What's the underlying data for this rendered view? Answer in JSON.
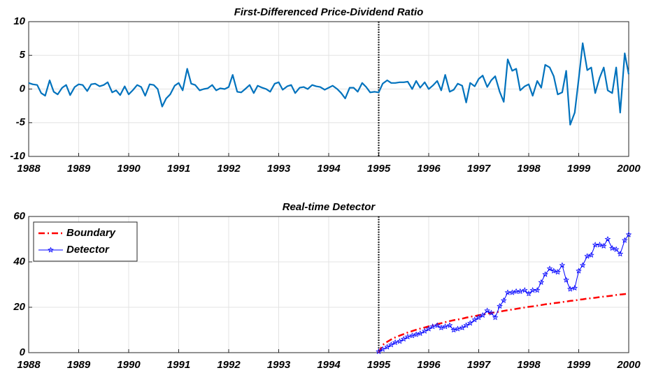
{
  "chart_data": [
    {
      "type": "line",
      "title": "First-Differenced Price-Dividend Ratio",
      "xlim": [
        1988,
        2000
      ],
      "xticks": [
        1988,
        1989,
        1990,
        1991,
        1992,
        1993,
        1994,
        1995,
        1996,
        1997,
        1998,
        1999,
        2000
      ],
      "ylim": [
        -10,
        10
      ],
      "yticks": [
        -10,
        -5,
        0,
        5,
        10
      ],
      "grid": true,
      "vline": 1995,
      "x": [
        1988,
        1988.08,
        1988.17,
        1988.25,
        1988.33,
        1988.42,
        1988.5,
        1988.58,
        1988.67,
        1988.75,
        1988.83,
        1988.92,
        1989,
        1989.08,
        1989.17,
        1989.25,
        1989.33,
        1989.42,
        1989.5,
        1989.58,
        1989.67,
        1989.75,
        1989.83,
        1989.92,
        1990,
        1990.08,
        1990.17,
        1990.25,
        1990.33,
        1990.42,
        1990.5,
        1990.58,
        1990.67,
        1990.75,
        1990.83,
        1990.92,
        1991,
        1991.08,
        1991.17,
        1991.25,
        1991.33,
        1991.42,
        1991.5,
        1991.58,
        1991.67,
        1991.75,
        1991.83,
        1991.92,
        1992,
        1992.08,
        1992.17,
        1992.25,
        1992.33,
        1992.42,
        1992.5,
        1992.58,
        1992.67,
        1992.75,
        1992.83,
        1992.92,
        1993,
        1993.08,
        1993.17,
        1993.25,
        1993.33,
        1993.42,
        1993.5,
        1993.58,
        1993.67,
        1993.75,
        1993.83,
        1993.92,
        1994,
        1994.08,
        1994.17,
        1994.25,
        1994.33,
        1994.42,
        1994.5,
        1994.58,
        1994.67,
        1994.75,
        1994.83,
        1994.92,
        1995,
        1995.08,
        1995.17,
        1995.25,
        1995.33,
        1995.42,
        1995.5,
        1995.58,
        1995.67,
        1995.75,
        1995.83,
        1995.92,
        1996,
        1996.08,
        1996.17,
        1996.25,
        1996.33,
        1996.42,
        1996.5,
        1996.58,
        1996.67,
        1996.75,
        1996.83,
        1996.92,
        1997,
        1997.08,
        1997.17,
        1997.25,
        1997.33,
        1997.42,
        1997.5,
        1997.58,
        1997.67,
        1997.75,
        1997.83,
        1997.92,
        1998,
        1998.08,
        1998.17,
        1998.25,
        1998.33,
        1998.42,
        1998.5,
        1998.58,
        1998.67,
        1998.75,
        1998.83,
        1998.92,
        1999,
        1999.08,
        1999.17,
        1999.25,
        1999.33,
        1999.42,
        1999.5,
        1999.58,
        1999.67,
        1999.75,
        1999.83,
        1999.92,
        2000
      ],
      "series": [
        {
          "color": "#0072bd",
          "values": [
            0.9,
            0.7,
            0.6,
            -0.6,
            -1.0,
            1.3,
            -0.4,
            -0.8,
            0.2,
            0.6,
            -0.9,
            0.3,
            0.7,
            0.6,
            -0.3,
            0.7,
            0.8,
            0.4,
            0.6,
            1.0,
            -0.5,
            -0.2,
            -0.9,
            0.4,
            -0.8,
            -0.2,
            0.6,
            0.3,
            -1.0,
            0.7,
            0.6,
            0.0,
            -2.6,
            -1.4,
            -0.8,
            0.5,
            0.9,
            -0.2,
            3.0,
            0.8,
            0.6,
            -0.2,
            0.0,
            0.1,
            0.6,
            -0.2,
            0.1,
            0.0,
            0.3,
            2.1,
            -0.4,
            -0.5,
            0.0,
            0.6,
            -0.6,
            0.5,
            0.2,
            0.0,
            -0.4,
            0.8,
            1.0,
            -0.1,
            0.4,
            0.6,
            -0.6,
            0.2,
            0.3,
            0.0,
            0.6,
            0.4,
            0.3,
            -0.1,
            0.2,
            0.5,
            0.0,
            -0.6,
            -1.4,
            0.2,
            0.2,
            -0.4,
            0.9,
            0.3,
            -0.5,
            -0.4,
            -0.5,
            0.8,
            1.3,
            0.9,
            0.9,
            1.0,
            1.0,
            1.1,
            0.0,
            1.2,
            0.2,
            1.0,
            0.0,
            0.5,
            1.2,
            -0.2,
            2.1,
            -0.4,
            -0.1,
            0.8,
            0.5,
            -2.0,
            0.9,
            0.4,
            1.5,
            2.0,
            0.3,
            1.3,
            1.9,
            -0.4,
            -1.9,
            4.4,
            2.7,
            3.0,
            -0.2,
            0.4,
            0.7,
            -1.0,
            1.2,
            0.2,
            3.6,
            3.2,
            1.9,
            -0.8,
            -0.5,
            2.7,
            -5.3,
            -3.5,
            1.5,
            6.8,
            2.8,
            3.2,
            -0.6,
            1.7,
            3.2,
            -0.2,
            -0.6,
            3.2,
            -3.5,
            5.3,
            2.2
          ]
        }
      ]
    },
    {
      "type": "line",
      "title": "Real-time Detector",
      "xlim": [
        1988,
        2000
      ],
      "xticks": [
        1988,
        1989,
        1990,
        1991,
        1992,
        1993,
        1994,
        1995,
        1996,
        1997,
        1998,
        1999,
        2000
      ],
      "ylim": [
        0,
        60
      ],
      "yticks": [
        0,
        20,
        40,
        60
      ],
      "grid": true,
      "vline": 1995,
      "legend": "upper left",
      "x": [
        1995,
        1995.08,
        1995.17,
        1995.25,
        1995.33,
        1995.42,
        1995.5,
        1995.58,
        1995.67,
        1995.75,
        1995.83,
        1995.92,
        1996,
        1996.08,
        1996.17,
        1996.25,
        1996.33,
        1996.42,
        1996.5,
        1996.58,
        1996.67,
        1996.75,
        1996.83,
        1996.92,
        1997,
        1997.08,
        1997.17,
        1997.25,
        1997.33,
        1997.42,
        1997.5,
        1997.58,
        1997.67,
        1997.75,
        1997.83,
        1997.92,
        1998,
        1998.08,
        1998.17,
        1998.25,
        1998.33,
        1998.42,
        1998.5,
        1998.58,
        1998.67,
        1998.75,
        1998.83,
        1998.92,
        1999,
        1999.08,
        1999.17,
        1999.25,
        1999.33,
        1999.42,
        1999.5,
        1999.58,
        1999.67,
        1999.75,
        1999.83,
        1999.92,
        2000
      ],
      "series": [
        {
          "name": "Boundary",
          "color": "#ff0000",
          "dash": "dashdot",
          "values": [
            0,
            3.4,
            4.8,
            5.8,
            6.7,
            7.5,
            8.2,
            8.9,
            9.5,
            10.1,
            10.6,
            11.1,
            11.6,
            12.1,
            12.6,
            13.0,
            13.4,
            13.9,
            14.3,
            14.6,
            15.0,
            15.4,
            15.8,
            16.1,
            16.5,
            16.8,
            17.1,
            17.5,
            17.8,
            18.1,
            18.4,
            18.7,
            19.0,
            19.3,
            19.6,
            19.9,
            20.2,
            20.4,
            20.7,
            21.0,
            21.3,
            21.5,
            21.8,
            22.0,
            22.3,
            22.5,
            22.8,
            23.0,
            23.3,
            23.5,
            23.8,
            24.0,
            24.2,
            24.5,
            24.7,
            24.9,
            25.1,
            25.4,
            25.6,
            25.8,
            26.0
          ]
        },
        {
          "name": "Detector",
          "color": "#0000ff",
          "marker": "star",
          "values": [
            0.5,
            1.5,
            2.5,
            3.5,
            4.5,
            5,
            6,
            7,
            7.5,
            8,
            8.5,
            9.5,
            10.5,
            11.5,
            12,
            11,
            11.5,
            12,
            10,
            10.5,
            11,
            12,
            13,
            14.5,
            15.5,
            16.5,
            18.5,
            17.5,
            15.5,
            20.5,
            23,
            26.5,
            26.5,
            27,
            27,
            27.5,
            26,
            27.5,
            27.5,
            31,
            34.5,
            37,
            36,
            35.5,
            38.5,
            32,
            28,
            28.5,
            36,
            38.5,
            42.5,
            43,
            47.5,
            47.5,
            47,
            50,
            46,
            45.5,
            43.5,
            49.5,
            52
          ]
        }
      ]
    }
  ]
}
